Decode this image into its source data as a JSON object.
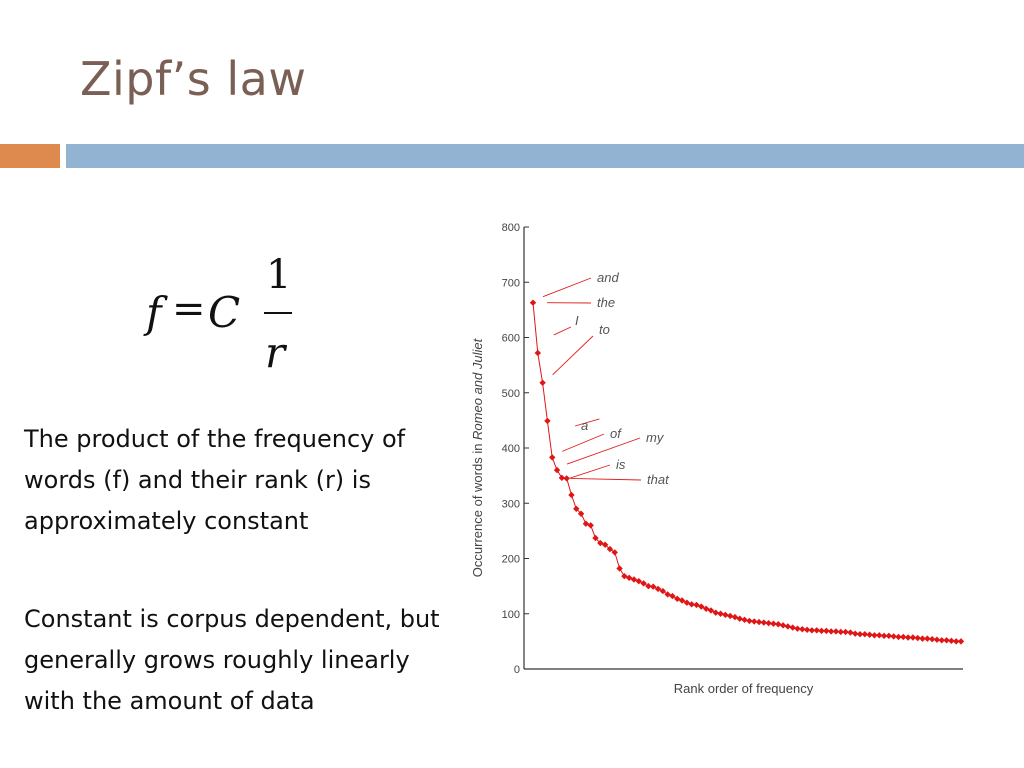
{
  "slide": {
    "title": "Zipf’s law",
    "paragraphs": [
      "The product of the frequency of words (f) and their rank (r) is approximately constant",
      "Constant is corpus dependent, but generally grows roughly linearly with the amount of data"
    ]
  },
  "formula": {
    "f": "f",
    "eq": "=",
    "c": "C",
    "numerator": "1",
    "denominator": "r"
  },
  "colors": {
    "title": "#7a5f55",
    "accent_orange": "#de8a4f",
    "accent_blue": "#93b3d3",
    "series": "#e01616",
    "axis": "#333333",
    "leader": "#e02020"
  },
  "chart_data": {
    "type": "scatter",
    "title": "",
    "xlabel": "Rank order of frequency",
    "ylabel_parts": [
      "Occurrence of words in ",
      "Romeo and Juliet"
    ],
    "ylim": [
      0,
      800
    ],
    "yticks": [
      "0",
      "100",
      "200",
      "300",
      "400",
      "500",
      "600",
      "700",
      "800"
    ],
    "grid": false,
    "series": [
      {
        "values": [
          663,
          572,
          518,
          449,
          383,
          360,
          346,
          345,
          315,
          290,
          281,
          263,
          260,
          237,
          228,
          225,
          217,
          211,
          182,
          168,
          165,
          162,
          159,
          155,
          150,
          149,
          145,
          141,
          135,
          132,
          127,
          124,
          120,
          117,
          116,
          113,
          109,
          106,
          102,
          100,
          98,
          96,
          94,
          91,
          89,
          87,
          86,
          85,
          84,
          83,
          82,
          81,
          79,
          77,
          75,
          73,
          72,
          71,
          70,
          70,
          69,
          69,
          68,
          68,
          67,
          67,
          66,
          64,
          63,
          63,
          62,
          61,
          61,
          60,
          60,
          59,
          58,
          58,
          57,
          57,
          56,
          55,
          55,
          54,
          53,
          52,
          52,
          51,
          50,
          50
        ]
      }
    ],
    "annotations": [
      {
        "label": "and",
        "rank": 1
      },
      {
        "label": "the",
        "rank": 1
      },
      {
        "label": "I",
        "rank": 2
      },
      {
        "label": "to",
        "rank": 3
      },
      {
        "label": "a",
        "rank": 4
      },
      {
        "label": "of",
        "rank": 5
      },
      {
        "label": "my",
        "rank": 6
      },
      {
        "label": "is",
        "rank": 7
      },
      {
        "label": "that",
        "rank": 8
      }
    ]
  }
}
